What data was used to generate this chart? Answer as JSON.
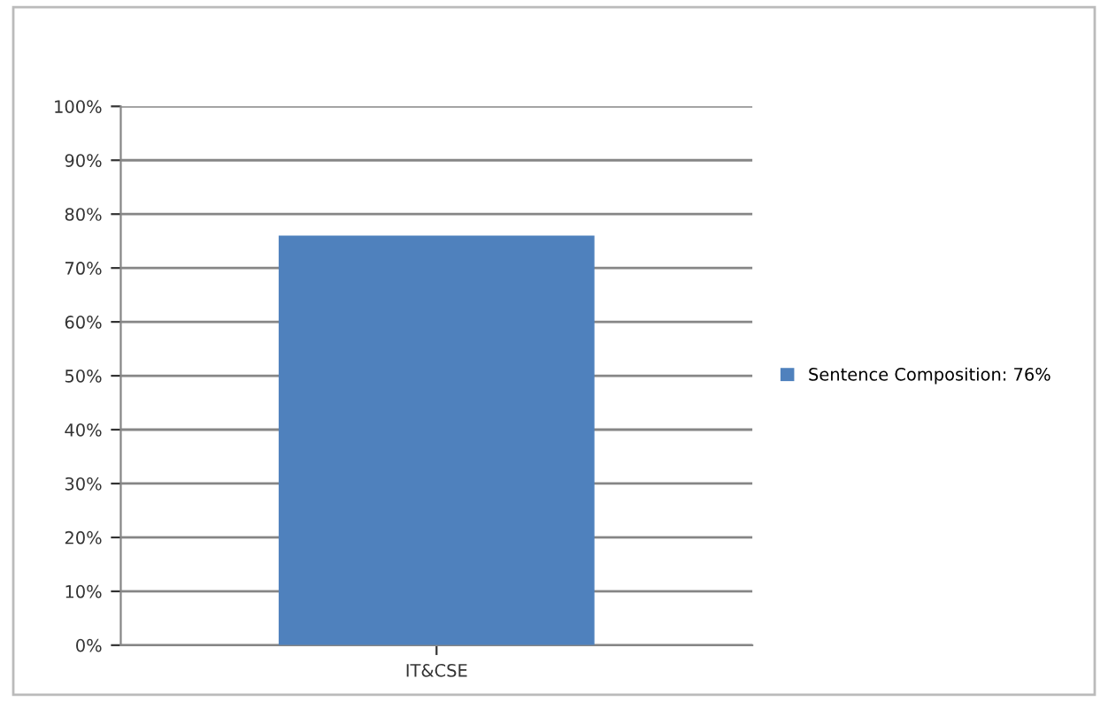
{
  "chart_data": {
    "type": "bar",
    "categories": [
      "IT&CSE"
    ],
    "series": [
      {
        "name": "Sentence Composition: 76%",
        "color": "#4f81bd",
        "values": [
          76
        ]
      }
    ],
    "ylim": [
      0,
      100
    ],
    "yticks": [
      {
        "value": 0,
        "label": "0%"
      },
      {
        "value": 10,
        "label": "10%"
      },
      {
        "value": 20,
        "label": "20%"
      },
      {
        "value": 30,
        "label": "30%"
      },
      {
        "value": 40,
        "label": "40%"
      },
      {
        "value": 50,
        "label": "50%"
      },
      {
        "value": 60,
        "label": "60%"
      },
      {
        "value": 70,
        "label": "70%"
      },
      {
        "value": 80,
        "label": "80%"
      },
      {
        "value": 90,
        "label": "90%"
      },
      {
        "value": 100,
        "label": "100%"
      }
    ],
    "grid": "y",
    "legend": "right"
  }
}
